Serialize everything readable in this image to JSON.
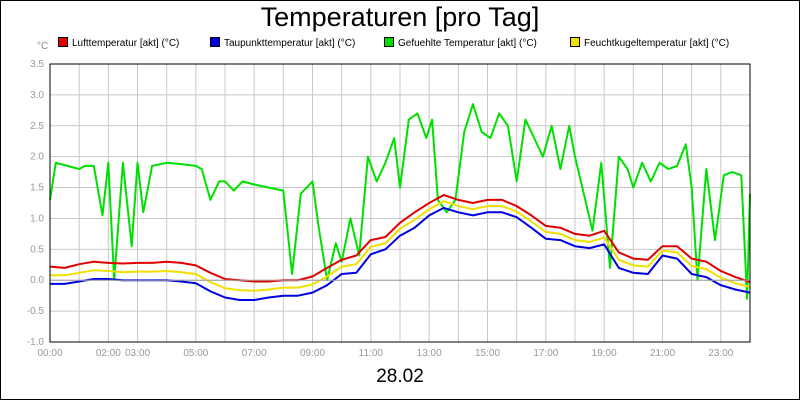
{
  "chart_data": {
    "type": "line",
    "title": "Temperaturen [pro Tag]",
    "xlabel": "28.02",
    "ylabel": "°C",
    "ylim": [
      -1.0,
      3.5
    ],
    "xlim_hours": [
      0,
      24
    ],
    "grid": true,
    "legend_position": "top",
    "y_tick_labels": [
      "-1.0",
      "-0.5",
      "0.0",
      "0.5",
      "1.0",
      "1.5",
      "2.0",
      "2.5",
      "3.0",
      "3.5"
    ],
    "x_tick_labels": [
      {
        "hour": 0,
        "label": "00:00"
      },
      {
        "hour": 2,
        "label": "02:00"
      },
      {
        "hour": 3,
        "label": "03:00"
      },
      {
        "hour": 5,
        "label": "05:00"
      },
      {
        "hour": 7,
        "label": "07:00"
      },
      {
        "hour": 9,
        "label": "09:00"
      },
      {
        "hour": 11,
        "label": "11:00"
      },
      {
        "hour": 13,
        "label": "13:00"
      },
      {
        "hour": 15,
        "label": "15:00"
      },
      {
        "hour": 17,
        "label": "17:00"
      },
      {
        "hour": 19,
        "label": "19:00"
      },
      {
        "hour": 21,
        "label": "21:00"
      },
      {
        "hour": 23,
        "label": "23:00"
      }
    ],
    "series": [
      {
        "name": "Lufttemperatur [akt] (°C)",
        "color": "#e00000",
        "points": [
          [
            0,
            0.22
          ],
          [
            0.5,
            0.2
          ],
          [
            1,
            0.26
          ],
          [
            1.5,
            0.3
          ],
          [
            2,
            0.28
          ],
          [
            2.5,
            0.27
          ],
          [
            3,
            0.28
          ],
          [
            3.5,
            0.28
          ],
          [
            4,
            0.3
          ],
          [
            4.5,
            0.28
          ],
          [
            5,
            0.24
          ],
          [
            5.5,
            0.12
          ],
          [
            6,
            0.02
          ],
          [
            6.5,
            0.0
          ],
          [
            7,
            -0.02
          ],
          [
            7.5,
            -0.02
          ],
          [
            8,
            0.0
          ],
          [
            8.5,
            0.0
          ],
          [
            9,
            0.06
          ],
          [
            9.5,
            0.2
          ],
          [
            10,
            0.33
          ],
          [
            10.5,
            0.4
          ],
          [
            11,
            0.65
          ],
          [
            11.5,
            0.7
          ],
          [
            12,
            0.93
          ],
          [
            12.5,
            1.1
          ],
          [
            13,
            1.25
          ],
          [
            13.5,
            1.38
          ],
          [
            14,
            1.3
          ],
          [
            14.5,
            1.25
          ],
          [
            15,
            1.3
          ],
          [
            15.5,
            1.3
          ],
          [
            16,
            1.2
          ],
          [
            16.5,
            1.05
          ],
          [
            17,
            0.88
          ],
          [
            17.5,
            0.85
          ],
          [
            18,
            0.75
          ],
          [
            18.5,
            0.72
          ],
          [
            19,
            0.8
          ],
          [
            19.5,
            0.45
          ],
          [
            20,
            0.35
          ],
          [
            20.5,
            0.33
          ],
          [
            21,
            0.55
          ],
          [
            21.5,
            0.55
          ],
          [
            22,
            0.35
          ],
          [
            22.5,
            0.3
          ],
          [
            23,
            0.15
          ],
          [
            23.5,
            0.05
          ],
          [
            24,
            -0.03
          ]
        ]
      },
      {
        "name": "Taupunkttemperatur [akt] (°C)",
        "color": "#0000e0",
        "points": [
          [
            0,
            -0.06
          ],
          [
            0.5,
            -0.06
          ],
          [
            1,
            -0.02
          ],
          [
            1.5,
            0.02
          ],
          [
            2,
            0.02
          ],
          [
            2.5,
            0.0
          ],
          [
            3,
            0.0
          ],
          [
            3.5,
            0.0
          ],
          [
            4,
            0.0
          ],
          [
            4.5,
            -0.02
          ],
          [
            5,
            -0.05
          ],
          [
            5.5,
            -0.18
          ],
          [
            6,
            -0.28
          ],
          [
            6.5,
            -0.32
          ],
          [
            7,
            -0.32
          ],
          [
            7.5,
            -0.28
          ],
          [
            8,
            -0.25
          ],
          [
            8.5,
            -0.25
          ],
          [
            9,
            -0.2
          ],
          [
            9.5,
            -0.08
          ],
          [
            10,
            0.1
          ],
          [
            10.5,
            0.12
          ],
          [
            11,
            0.42
          ],
          [
            11.5,
            0.5
          ],
          [
            12,
            0.72
          ],
          [
            12.5,
            0.85
          ],
          [
            13,
            1.05
          ],
          [
            13.5,
            1.17
          ],
          [
            14,
            1.1
          ],
          [
            14.5,
            1.05
          ],
          [
            15,
            1.1
          ],
          [
            15.5,
            1.1
          ],
          [
            16,
            1.02
          ],
          [
            16.5,
            0.85
          ],
          [
            17,
            0.67
          ],
          [
            17.5,
            0.65
          ],
          [
            18,
            0.55
          ],
          [
            18.5,
            0.52
          ],
          [
            19,
            0.58
          ],
          [
            19.5,
            0.2
          ],
          [
            20,
            0.12
          ],
          [
            20.5,
            0.1
          ],
          [
            21,
            0.4
          ],
          [
            21.5,
            0.35
          ],
          [
            22,
            0.1
          ],
          [
            22.5,
            0.05
          ],
          [
            23,
            -0.08
          ],
          [
            23.5,
            -0.15
          ],
          [
            24,
            -0.2
          ]
        ]
      },
      {
        "name": "Gefuehlte Temperatur [akt] (°C)",
        "color": "#00e000",
        "points": [
          [
            0,
            1.3
          ],
          [
            0.2,
            1.9
          ],
          [
            0.6,
            1.85
          ],
          [
            1,
            1.8
          ],
          [
            1.2,
            1.85
          ],
          [
            1.5,
            1.85
          ],
          [
            1.8,
            1.05
          ],
          [
            2,
            1.9
          ],
          [
            2.2,
            0.0
          ],
          [
            2.5,
            1.9
          ],
          [
            2.8,
            0.55
          ],
          [
            3,
            1.9
          ],
          [
            3.2,
            1.1
          ],
          [
            3.5,
            1.85
          ],
          [
            4,
            1.9
          ],
          [
            4.5,
            1.88
          ],
          [
            5,
            1.85
          ],
          [
            5.2,
            1.8
          ],
          [
            5.5,
            1.3
          ],
          [
            5.8,
            1.6
          ],
          [
            6,
            1.6
          ],
          [
            6.3,
            1.45
          ],
          [
            6.6,
            1.6
          ],
          [
            7,
            1.55
          ],
          [
            7.5,
            1.5
          ],
          [
            8,
            1.45
          ],
          [
            8.3,
            0.1
          ],
          [
            8.6,
            1.4
          ],
          [
            9,
            1.6
          ],
          [
            9.2,
            0.9
          ],
          [
            9.5,
            0.0
          ],
          [
            9.8,
            0.6
          ],
          [
            10,
            0.3
          ],
          [
            10.3,
            1.0
          ],
          [
            10.6,
            0.4
          ],
          [
            10.9,
            2.0
          ],
          [
            11.2,
            1.6
          ],
          [
            11.5,
            1.9
          ],
          [
            11.8,
            2.3
          ],
          [
            12,
            1.5
          ],
          [
            12.3,
            2.6
          ],
          [
            12.6,
            2.7
          ],
          [
            12.9,
            2.3
          ],
          [
            13.1,
            2.6
          ],
          [
            13.3,
            1.3
          ],
          [
            13.6,
            1.1
          ],
          [
            13.9,
            1.3
          ],
          [
            14.2,
            2.4
          ],
          [
            14.5,
            2.85
          ],
          [
            14.8,
            2.4
          ],
          [
            15.1,
            2.3
          ],
          [
            15.4,
            2.7
          ],
          [
            15.7,
            2.5
          ],
          [
            16,
            1.6
          ],
          [
            16.3,
            2.6
          ],
          [
            16.6,
            2.3
          ],
          [
            16.9,
            2.0
          ],
          [
            17.2,
            2.5
          ],
          [
            17.5,
            1.8
          ],
          [
            17.8,
            2.5
          ],
          [
            18,
            2.0
          ],
          [
            18.3,
            1.4
          ],
          [
            18.6,
            0.8
          ],
          [
            18.9,
            1.9
          ],
          [
            19.2,
            0.2
          ],
          [
            19.5,
            2.0
          ],
          [
            19.8,
            1.8
          ],
          [
            20,
            1.5
          ],
          [
            20.3,
            1.9
          ],
          [
            20.6,
            1.6
          ],
          [
            20.9,
            1.9
          ],
          [
            21.2,
            1.8
          ],
          [
            21.5,
            1.85
          ],
          [
            21.8,
            2.2
          ],
          [
            22,
            1.5
          ],
          [
            22.2,
            0.0
          ],
          [
            22.5,
            1.8
          ],
          [
            22.8,
            0.65
          ],
          [
            23.1,
            1.7
          ],
          [
            23.4,
            1.75
          ],
          [
            23.7,
            1.7
          ],
          [
            23.9,
            -0.3
          ],
          [
            24,
            1.4
          ]
        ]
      },
      {
        "name": "Feuchtkugeltemperatur [akt] (°C)",
        "color": "#f0e000",
        "points": [
          [
            0,
            0.08
          ],
          [
            0.5,
            0.08
          ],
          [
            1,
            0.12
          ],
          [
            1.5,
            0.16
          ],
          [
            2,
            0.15
          ],
          [
            2.5,
            0.13
          ],
          [
            3,
            0.14
          ],
          [
            3.5,
            0.14
          ],
          [
            4,
            0.15
          ],
          [
            4.5,
            0.13
          ],
          [
            5,
            0.1
          ],
          [
            5.5,
            -0.03
          ],
          [
            6,
            -0.13
          ],
          [
            6.5,
            -0.16
          ],
          [
            7,
            -0.17
          ],
          [
            7.5,
            -0.15
          ],
          [
            8,
            -0.12
          ],
          [
            8.5,
            -0.12
          ],
          [
            9,
            -0.07
          ],
          [
            9.5,
            0.06
          ],
          [
            10,
            0.22
          ],
          [
            10.5,
            0.26
          ],
          [
            11,
            0.54
          ],
          [
            11.5,
            0.6
          ],
          [
            12,
            0.83
          ],
          [
            12.5,
            0.98
          ],
          [
            13,
            1.15
          ],
          [
            13.5,
            1.28
          ],
          [
            14,
            1.2
          ],
          [
            14.5,
            1.15
          ],
          [
            15,
            1.2
          ],
          [
            15.5,
            1.2
          ],
          [
            16,
            1.11
          ],
          [
            16.5,
            0.95
          ],
          [
            17,
            0.78
          ],
          [
            17.5,
            0.75
          ],
          [
            18,
            0.65
          ],
          [
            18.5,
            0.62
          ],
          [
            19,
            0.69
          ],
          [
            19.5,
            0.33
          ],
          [
            20,
            0.24
          ],
          [
            20.5,
            0.22
          ],
          [
            21,
            0.48
          ],
          [
            21.5,
            0.45
          ],
          [
            22,
            0.23
          ],
          [
            22.5,
            0.18
          ],
          [
            23,
            0.04
          ],
          [
            23.5,
            -0.05
          ],
          [
            24,
            -0.11
          ]
        ]
      }
    ]
  }
}
